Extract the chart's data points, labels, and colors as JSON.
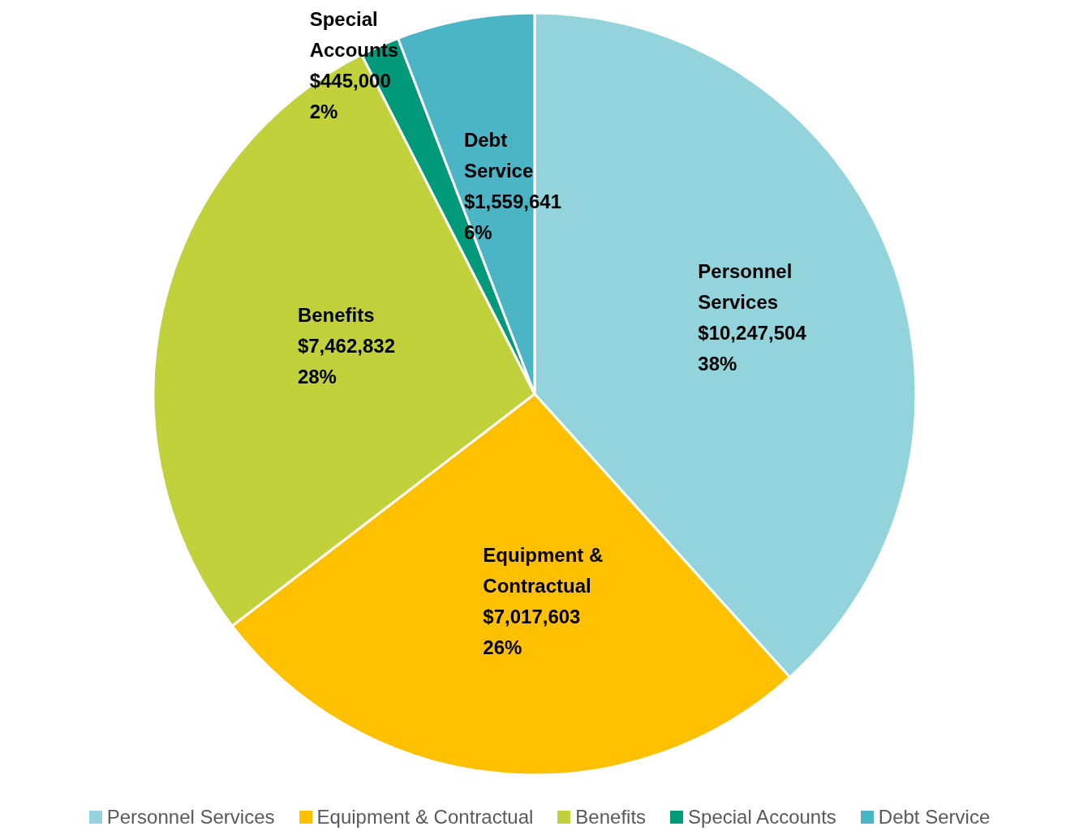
{
  "chart_data": {
    "type": "pie",
    "categories": [
      "Personnel Services",
      "Equipment & Contractual",
      "Benefits",
      "Special Accounts",
      "Debt Service"
    ],
    "values": [
      10247504,
      7017603,
      7462832,
      445000,
      1559641
    ],
    "colors": [
      "#92d3dc",
      "#ffc000",
      "#c0d13c",
      "#009a7a",
      "#4bb4c5"
    ],
    "value_labels": [
      "$10,247,504\n38%",
      "$7,017,603\n26%",
      "$7,462,832\n28%",
      "$445,000\n2%",
      "$1,559,641\n6%"
    ],
    "legend": "bottom"
  }
}
